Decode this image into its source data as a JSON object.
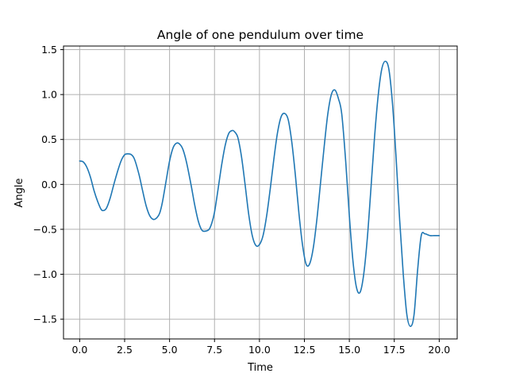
{
  "chart_data": {
    "type": "line",
    "title": "Angle of one pendulum over time",
    "xlabel": "Time",
    "ylabel": "Angle",
    "xlim": [
      -0.9,
      21.0
    ],
    "ylim": [
      -1.72,
      1.54
    ],
    "grid": true,
    "xticks": [
      0.0,
      2.5,
      5.0,
      7.5,
      10.0,
      12.5,
      15.0,
      17.5,
      20.0
    ],
    "xtick_labels": [
      "0.0",
      "2.5",
      "5.0",
      "7.5",
      "10.0",
      "12.5",
      "15.0",
      "17.5",
      "20.0"
    ],
    "yticks": [
      1.5,
      1.0,
      0.5,
      0.0,
      -0.5,
      -1.0,
      -1.5
    ],
    "ytick_labels": [
      "1.5",
      "1.0",
      "0.5",
      "0.0",
      "−0.5",
      "−1.0",
      "−1.5"
    ],
    "series": [
      {
        "color": "#1f77b4",
        "x": [
          0.0,
          0.2,
          0.4,
          0.6,
          0.8,
          1.0,
          1.2,
          1.35,
          1.5,
          1.7,
          1.9,
          2.1,
          2.3,
          2.5,
          2.7,
          2.88,
          3.05,
          3.3,
          3.5,
          3.7,
          3.9,
          4.1,
          4.3,
          4.45,
          4.6,
          4.8,
          5.0,
          5.2,
          5.4,
          5.6,
          5.76,
          5.95,
          6.2,
          6.4,
          6.6,
          6.8,
          7.0,
          7.2,
          7.35,
          7.5,
          7.7,
          7.9,
          8.1,
          8.3,
          8.5,
          8.64,
          8.8,
          9.0,
          9.2,
          9.4,
          9.6,
          9.8,
          10.0,
          10.2,
          10.4,
          10.6,
          10.8,
          11.0,
          11.2,
          11.4,
          11.6,
          11.8,
          12.0,
          12.2,
          12.4,
          12.6,
          12.8,
          13.0,
          13.2,
          13.4,
          13.6,
          13.8,
          14.0,
          14.2,
          14.4,
          14.58,
          14.8,
          15.0,
          15.2,
          15.4,
          15.6,
          15.8,
          16.0,
          16.2,
          16.4,
          16.6,
          16.8,
          17.0,
          17.2,
          17.4,
          17.6,
          17.8,
          18.0,
          18.2,
          18.4,
          18.6,
          18.8,
          19.0,
          19.2,
          19.35,
          19.5,
          19.7,
          19.85,
          20.0
        ],
        "y": [
          0.26,
          0.25,
          0.19,
          0.08,
          -0.07,
          -0.19,
          -0.28,
          -0.29,
          -0.26,
          -0.15,
          0.0,
          0.14,
          0.26,
          0.33,
          0.34,
          0.33,
          0.28,
          0.11,
          -0.07,
          -0.24,
          -0.35,
          -0.39,
          -0.37,
          -0.32,
          -0.2,
          0.03,
          0.26,
          0.41,
          0.46,
          0.44,
          0.38,
          0.24,
          -0.01,
          -0.23,
          -0.41,
          -0.51,
          -0.52,
          -0.5,
          -0.43,
          -0.31,
          -0.05,
          0.22,
          0.44,
          0.57,
          0.6,
          0.58,
          0.52,
          0.31,
          0.0,
          -0.33,
          -0.57,
          -0.68,
          -0.67,
          -0.57,
          -0.35,
          -0.05,
          0.28,
          0.57,
          0.75,
          0.79,
          0.72,
          0.47,
          0.1,
          -0.33,
          -0.68,
          -0.89,
          -0.88,
          -0.7,
          -0.38,
          0.02,
          0.42,
          0.78,
          1.0,
          1.05,
          0.95,
          0.78,
          0.25,
          -0.35,
          -0.85,
          -1.15,
          -1.2,
          -1.0,
          -0.6,
          -0.05,
          0.52,
          0.98,
          1.28,
          1.37,
          1.28,
          0.9,
          0.3,
          -0.4,
          -1.0,
          -1.45,
          -1.58,
          -1.45,
          -0.95,
          -0.57,
          -0.55,
          -0.56,
          -0.57,
          -0.57,
          -0.57,
          -0.57
        ]
      }
    ]
  }
}
